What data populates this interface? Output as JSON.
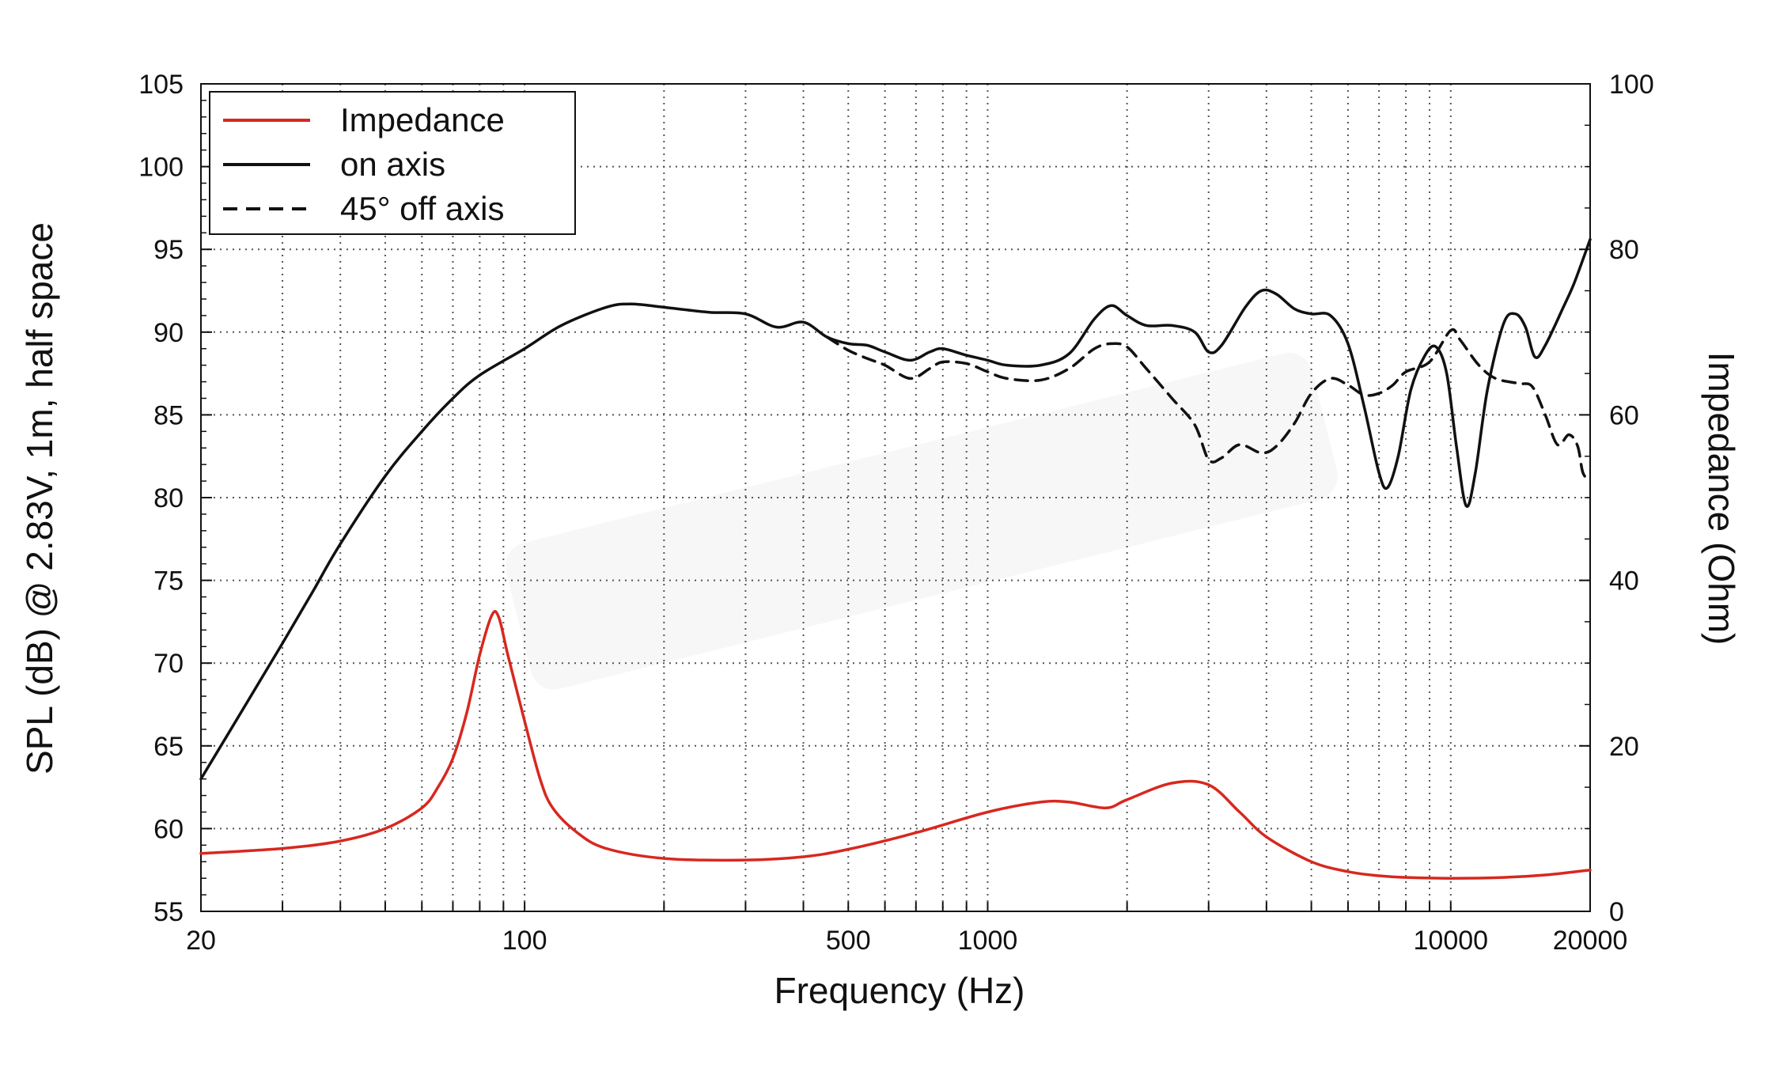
{
  "chart_data": {
    "type": "line",
    "title": "",
    "xlabel": "Frequency (Hz)",
    "ylabel_left": "SPL (dB) @ 2.83V, 1m, half space",
    "ylabel_right": "Impedance (Ohm)",
    "x_scale": "log",
    "xlim": [
      20,
      20000
    ],
    "ylim_left": [
      55,
      105
    ],
    "ylim_right": [
      0,
      100
    ],
    "x_tick_labels": [
      {
        "value": 20,
        "label": "20"
      },
      {
        "value": 100,
        "label": "100"
      },
      {
        "value": 500,
        "label": "500"
      },
      {
        "value": 1000,
        "label": "1000"
      },
      {
        "value": 10000,
        "label": "10000"
      },
      {
        "value": 20000,
        "label": "20000"
      }
    ],
    "y_left_ticks": [
      55,
      60,
      65,
      70,
      75,
      80,
      85,
      90,
      95,
      100,
      105
    ],
    "y_right_ticks": [
      0,
      20,
      40,
      60,
      80,
      100
    ],
    "grid": true,
    "legend_position": "top-left",
    "colors": {
      "impedance": "#d7281f",
      "on_axis": "#111111",
      "off_axis": "#111111"
    },
    "series": [
      {
        "name": "Impedance",
        "axis": "right",
        "style": "solid",
        "color": "#d7281f",
        "points": [
          [
            20,
            7
          ],
          [
            30,
            7.6
          ],
          [
            40,
            8.5
          ],
          [
            50,
            10
          ],
          [
            60,
            12.5
          ],
          [
            65,
            15
          ],
          [
            70,
            18.5
          ],
          [
            75,
            24
          ],
          [
            80,
            31
          ],
          [
            85,
            35.8
          ],
          [
            88,
            35.5
          ],
          [
            92,
            31
          ],
          [
            100,
            23
          ],
          [
            108,
            16
          ],
          [
            115,
            12.5
          ],
          [
            130,
            9.5
          ],
          [
            150,
            7.6
          ],
          [
            200,
            6.4
          ],
          [
            300,
            6.2
          ],
          [
            400,
            6.6
          ],
          [
            500,
            7.5
          ],
          [
            700,
            9.5
          ],
          [
            1000,
            12
          ],
          [
            1300,
            13.2
          ],
          [
            1500,
            13.2
          ],
          [
            1800,
            12.5
          ],
          [
            2000,
            13.5
          ],
          [
            2500,
            15.5
          ],
          [
            3000,
            15.3
          ],
          [
            3500,
            12
          ],
          [
            4000,
            9
          ],
          [
            5000,
            6
          ],
          [
            6000,
            4.8
          ],
          [
            7000,
            4.3
          ],
          [
            8000,
            4.1
          ],
          [
            10000,
            4
          ],
          [
            13000,
            4.1
          ],
          [
            16000,
            4.4
          ],
          [
            20000,
            5
          ]
        ]
      },
      {
        "name": "on axis",
        "axis": "left",
        "style": "solid",
        "color": "#111111",
        "points": [
          [
            20,
            63
          ],
          [
            25,
            67.5
          ],
          [
            30,
            71.2
          ],
          [
            35,
            74.4
          ],
          [
            40,
            77.2
          ],
          [
            50,
            81.3
          ],
          [
            60,
            84
          ],
          [
            70,
            86
          ],
          [
            80,
            87.4
          ],
          [
            100,
            89
          ],
          [
            120,
            90.4
          ],
          [
            150,
            91.5
          ],
          [
            170,
            91.7
          ],
          [
            200,
            91.5
          ],
          [
            250,
            91.2
          ],
          [
            300,
            91.1
          ],
          [
            350,
            90.3
          ],
          [
            400,
            90.6
          ],
          [
            450,
            89.7
          ],
          [
            500,
            89.3
          ],
          [
            550,
            89.2
          ],
          [
            600,
            88.8
          ],
          [
            680,
            88.3
          ],
          [
            750,
            88.8
          ],
          [
            800,
            89
          ],
          [
            900,
            88.6
          ],
          [
            1000,
            88.3
          ],
          [
            1100,
            88
          ],
          [
            1300,
            88
          ],
          [
            1500,
            88.7
          ],
          [
            1700,
            90.8
          ],
          [
            1850,
            91.6
          ],
          [
            2000,
            91
          ],
          [
            2200,
            90.4
          ],
          [
            2500,
            90.4
          ],
          [
            2800,
            90
          ],
          [
            3000,
            88.8
          ],
          [
            3200,
            89.2
          ],
          [
            3600,
            91.5
          ],
          [
            3900,
            92.5
          ],
          [
            4200,
            92.3
          ],
          [
            4600,
            91.4
          ],
          [
            5000,
            91.1
          ],
          [
            5500,
            91
          ],
          [
            6000,
            89.3
          ],
          [
            6500,
            85.5
          ],
          [
            7000,
            81.5
          ],
          [
            7300,
            80.6
          ],
          [
            7700,
            82.5
          ],
          [
            8200,
            86.5
          ],
          [
            8800,
            88.6
          ],
          [
            9300,
            89.1
          ],
          [
            9800,
            87.5
          ],
          [
            10300,
            83
          ],
          [
            10800,
            79.5
          ],
          [
            11300,
            81.5
          ],
          [
            12000,
            86.5
          ],
          [
            13000,
            90.5
          ],
          [
            13800,
            91.1
          ],
          [
            14500,
            90.3
          ],
          [
            15200,
            88.5
          ],
          [
            16000,
            89.2
          ],
          [
            17500,
            91.5
          ],
          [
            18500,
            93
          ],
          [
            20000,
            95.6
          ]
        ]
      },
      {
        "name": "45° off axis",
        "axis": "left",
        "style": "dashed",
        "color": "#111111",
        "points": [
          [
            450,
            89.7
          ],
          [
            500,
            88.9
          ],
          [
            550,
            88.4
          ],
          [
            600,
            88
          ],
          [
            680,
            87.2
          ],
          [
            750,
            87.8
          ],
          [
            800,
            88.2
          ],
          [
            900,
            88.1
          ],
          [
            1000,
            87.6
          ],
          [
            1100,
            87.2
          ],
          [
            1300,
            87.1
          ],
          [
            1500,
            87.8
          ],
          [
            1700,
            89
          ],
          [
            1850,
            89.3
          ],
          [
            2000,
            89.1
          ],
          [
            2200,
            87.8
          ],
          [
            2500,
            86
          ],
          [
            2800,
            84.4
          ],
          [
            3000,
            82.3
          ],
          [
            3200,
            82.4
          ],
          [
            3500,
            83.2
          ],
          [
            3900,
            82.7
          ],
          [
            4200,
            83.1
          ],
          [
            4600,
            84.5
          ],
          [
            5000,
            86.3
          ],
          [
            5500,
            87.2
          ],
          [
            6000,
            86.8
          ],
          [
            6500,
            86.2
          ],
          [
            7000,
            86.3
          ],
          [
            7500,
            86.8
          ],
          [
            8000,
            87.6
          ],
          [
            9000,
            88.2
          ],
          [
            10000,
            90.1
          ],
          [
            10500,
            89.5
          ],
          [
            11500,
            88
          ],
          [
            12500,
            87.2
          ],
          [
            14000,
            86.9
          ],
          [
            15000,
            86.7
          ],
          [
            16000,
            85
          ],
          [
            17000,
            83.2
          ],
          [
            18000,
            83.8
          ],
          [
            18800,
            83.1
          ],
          [
            19300,
            81.5
          ],
          [
            20000,
            81
          ]
        ]
      }
    ]
  }
}
